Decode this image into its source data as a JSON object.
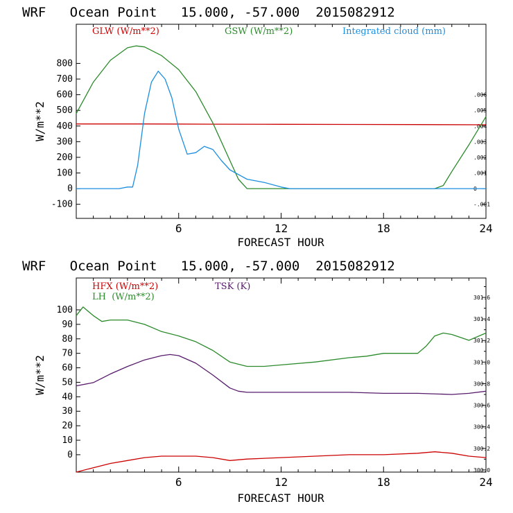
{
  "chart_data": [
    {
      "type": "line",
      "title": "WRF   Ocean Point   15.000, -57.000  2015082912",
      "xlabel": "FORECAST HOUR",
      "ylabel": "W/m**2",
      "xlim": [
        0,
        24
      ],
      "ylim": [
        -190,
        1050
      ],
      "x_ticks": [
        6,
        12,
        18,
        24
      ],
      "y_ticks": [
        800,
        700,
        600,
        500,
        400,
        300,
        200,
        100,
        0,
        -100
      ],
      "y2_ticks": [
        ".006",
        ".005",
        ".004",
        ".003",
        ".002",
        ".001",
        "0",
        "-.001"
      ],
      "y2lim": [
        -0.0019,
        0.0105
      ],
      "series": [
        {
          "name": "GLW (W/m**2)",
          "axis": "left",
          "color": "#cc0000",
          "x": [
            0,
            4,
            8,
            12,
            16,
            20,
            24
          ],
          "y": [
            413,
            413,
            412,
            411,
            410,
            409,
            408
          ]
        },
        {
          "name": "GSW (W/m**2)",
          "axis": "left",
          "color": "#2a8a2a",
          "x": [
            0,
            1,
            2,
            3,
            3.5,
            4,
            5,
            6,
            7,
            8,
            9,
            9.5,
            10,
            21,
            21.5,
            22,
            23,
            24
          ],
          "y": [
            480,
            680,
            820,
            900,
            912,
            905,
            850,
            760,
            620,
            420,
            180,
            60,
            0,
            0,
            20,
            110,
            280,
            460
          ]
        },
        {
          "name": "Integrated cloud (mm)",
          "axis": "right",
          "color": "#1a8ee0",
          "x": [
            0,
            2.5,
            3,
            3.3,
            3.6,
            4,
            4.4,
            4.8,
            5.2,
            5.6,
            6,
            6.5,
            7,
            7.5,
            8,
            8.5,
            9,
            10,
            11,
            12,
            12.5,
            24
          ],
          "y": [
            0,
            0,
            0.0001,
            0.0001,
            0.0015,
            0.0048,
            0.0068,
            0.0075,
            0.007,
            0.0058,
            0.0038,
            0.0022,
            0.0023,
            0.0027,
            0.0025,
            0.0018,
            0.0012,
            0.0006,
            0.0004,
            0.0001,
            0,
            0
          ]
        }
      ]
    },
    {
      "type": "line",
      "title": "WRF   Ocean Point   15.000, -57.000  2015082912",
      "xlabel": "FORECAST HOUR",
      "ylabel": "W/m**2",
      "xlim": [
        0,
        24
      ],
      "ylim": [
        -12,
        122
      ],
      "x_ticks": [
        6,
        12,
        18,
        24
      ],
      "y_ticks": [
        100,
        90,
        80,
        70,
        60,
        50,
        40,
        30,
        20,
        10,
        0
      ],
      "y2_ticks": [
        "301.6",
        "301.4",
        "301.2",
        "301.0",
        "300.8",
        "300.6",
        "300.4",
        "300.2",
        "300.0"
      ],
      "y2lim": [
        299.98,
        301.78
      ],
      "series": [
        {
          "name": "HFX (W/m**2)",
          "axis": "left",
          "color": "#cc0000",
          "x": [
            0,
            1,
            2,
            3,
            4,
            5,
            6,
            7,
            8,
            9,
            10,
            12,
            14,
            16,
            18,
            20,
            21,
            22,
            23,
            24
          ],
          "y": [
            -12,
            -9,
            -6,
            -4,
            -2,
            -1,
            -1,
            -1,
            -2,
            -4,
            -3,
            -2,
            -1,
            0,
            0,
            1,
            2,
            1,
            -1,
            -2
          ]
        },
        {
          "name": "LH  (W/m**2)",
          "axis": "left",
          "color": "#2a8a2a",
          "x": [
            0,
            0.4,
            1,
            1.5,
            2,
            3,
            4,
            5,
            6,
            7,
            8,
            9,
            10,
            11,
            12,
            14,
            16,
            17,
            18,
            19,
            20,
            20.5,
            21,
            21.5,
            22,
            23,
            24
          ],
          "y": [
            96,
            102,
            96,
            92,
            93,
            93,
            90,
            85,
            82,
            78,
            72,
            64,
            61,
            61,
            62,
            64,
            67,
            68,
            70,
            70,
            70,
            75,
            82,
            84,
            83,
            79,
            84
          ]
        },
        {
          "name": "TSK (K)",
          "axis": "right",
          "color": "#551a6a",
          "x": [
            0,
            1,
            2,
            3,
            4,
            5,
            5.5,
            6,
            7,
            8,
            9,
            9.5,
            10,
            12,
            14,
            16,
            18,
            20,
            22,
            23,
            24
          ],
          "y": [
            300.78,
            300.81,
            300.89,
            300.96,
            301.02,
            301.06,
            301.07,
            301.06,
            300.99,
            300.88,
            300.76,
            300.73,
            300.72,
            300.72,
            300.72,
            300.72,
            300.71,
            300.71,
            300.7,
            300.71,
            300.73
          ]
        }
      ]
    }
  ]
}
